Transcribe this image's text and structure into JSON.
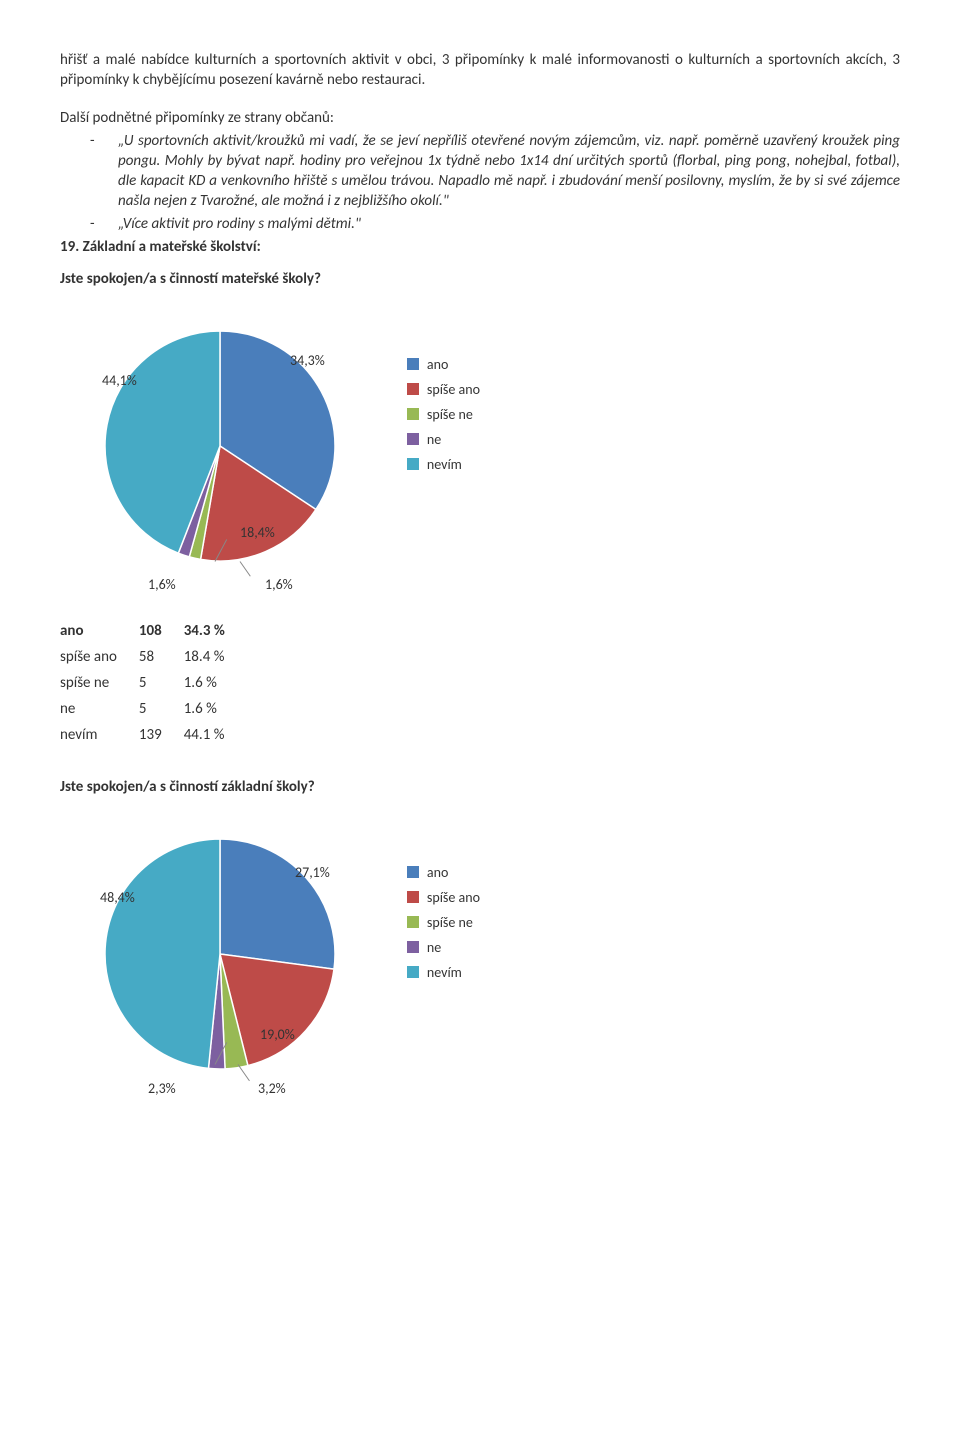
{
  "intro": "hřišť a malé nabídce kulturních a sportovních aktivit v obci, 3 připomínky k malé informovanosti o kulturních a sportovních akcích, 3 připomínky k chybějícímu posezení kavárně nebo restauraci.",
  "subhead": "Další podnětné připomínky ze strany občanů:",
  "bullet1": "„U sportovních aktivit/kroužků mi vadí, že se jeví nepříliš otevřené novým zájemcům, viz. např. poměrně uzavřený kroužek ping pongu. Mohly by bývat např. hodiny pro veřejnou 1x týdně nebo 1x14 dní určitých sportů (florbal, ping pong, nohejbal, fotbal), dle kapacit KD a venkovního hřiště s umělou trávou. Napadlo mě např. i zbudování menší posilovny, myslím, že by si své zájemce našla nejen z Tvarožné, ale možná i z nejbližšího okolí.\"",
  "bullet2": "„Více aktivit pro rodiny s malými dětmi.\"",
  "heading19": "19. Základní a mateřské školství:",
  "q1": "Jste spokojen/a s činností mateřské školy?",
  "q2": "Jste spokojen/a s činností základní školy?",
  "legend": {
    "items": [
      "ano",
      "spíše ano",
      "spíše ne",
      "ne",
      "nevím"
    ],
    "colors": [
      "#4a7ebb",
      "#be4b48",
      "#98b954",
      "#7d60a0",
      "#46aac5"
    ]
  },
  "chart1": {
    "slices": [
      {
        "label": "ano",
        "value": 34.3,
        "color": "#4a7ebb"
      },
      {
        "label": "spíše ano",
        "value": 18.4,
        "color": "#be4b48"
      },
      {
        "label": "spíše ne",
        "value": 1.6,
        "color": "#98b954"
      },
      {
        "label": "ne",
        "value": 1.6,
        "color": "#7d60a0"
      },
      {
        "label": "nevím",
        "value": 44.1,
        "color": "#46aac5"
      }
    ],
    "slice_labels": {
      "ano": "34,3%",
      "spise_ano": "18,4%",
      "spise_ne": "1,6%",
      "ne": "1,6%",
      "nevim": "44,1%"
    }
  },
  "chart2": {
    "slices": [
      {
        "label": "ano",
        "value": 27.1,
        "color": "#4a7ebb"
      },
      {
        "label": "spíše ano",
        "value": 19.0,
        "color": "#be4b48"
      },
      {
        "label": "spíše ne",
        "value": 3.2,
        "color": "#98b954"
      },
      {
        "label": "ne",
        "value": 2.3,
        "color": "#7d60a0"
      },
      {
        "label": "nevím",
        "value": 48.4,
        "color": "#46aac5"
      }
    ],
    "slice_labels": {
      "ano": "27,1%",
      "spise_ano": "19,0%",
      "spise_ne": "3,2%",
      "ne": "2,3%",
      "nevim": "48,4%"
    }
  },
  "table1": {
    "rows": [
      [
        "ano",
        "108",
        "34.3 %"
      ],
      [
        "spíše ano",
        "58",
        "18.4 %"
      ],
      [
        "spíše ne",
        "5",
        "1.6 %"
      ],
      [
        "ne",
        "5",
        "1.6 %"
      ],
      [
        "nevím",
        "139",
        "44.1 %"
      ]
    ]
  }
}
